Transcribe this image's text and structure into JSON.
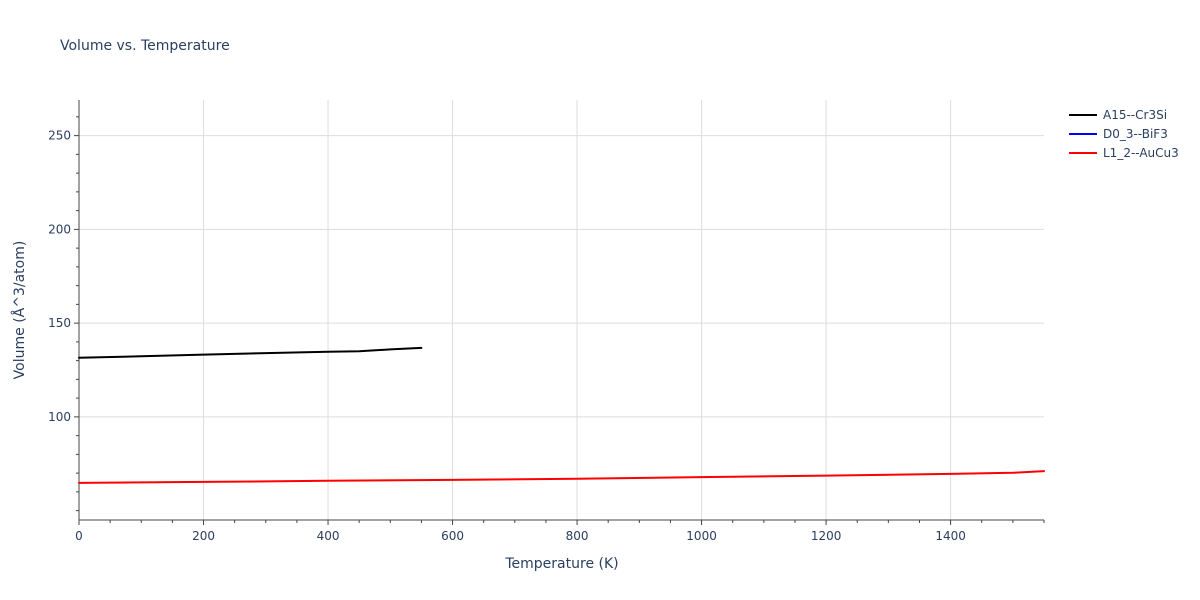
{
  "chart_data": {
    "type": "line",
    "title": "Volume vs. Temperature",
    "xlabel": "Temperature (K)",
    "ylabel": "Volume (Å^3/atom)",
    "xlim": [
      0,
      1550
    ],
    "ylim": [
      45,
      269
    ],
    "x_ticks": [
      0,
      200,
      400,
      600,
      800,
      1000,
      1200,
      1400
    ],
    "y_ticks": [
      100,
      150,
      200,
      250
    ],
    "grid": true,
    "legend_position": "top-right",
    "series": [
      {
        "name": "A15--Cr3Si",
        "color": "#000000",
        "x": [
          0,
          100,
          200,
          300,
          400,
          450,
          500,
          550
        ],
        "y": [
          131.5,
          132.3,
          133.2,
          134.0,
          134.7,
          135.0,
          136.0,
          136.8
        ]
      },
      {
        "name": "D0_3--BiF3",
        "color": "#0000ff",
        "x": [],
        "y": []
      },
      {
        "name": "L1_2--AuCu3",
        "color": "#ff0000",
        "x": [
          0,
          200,
          400,
          600,
          800,
          1000,
          1200,
          1400,
          1500,
          1550
        ],
        "y": [
          64.8,
          65.3,
          65.9,
          66.4,
          67.0,
          67.9,
          68.7,
          69.6,
          70.2,
          71.1
        ]
      }
    ]
  }
}
